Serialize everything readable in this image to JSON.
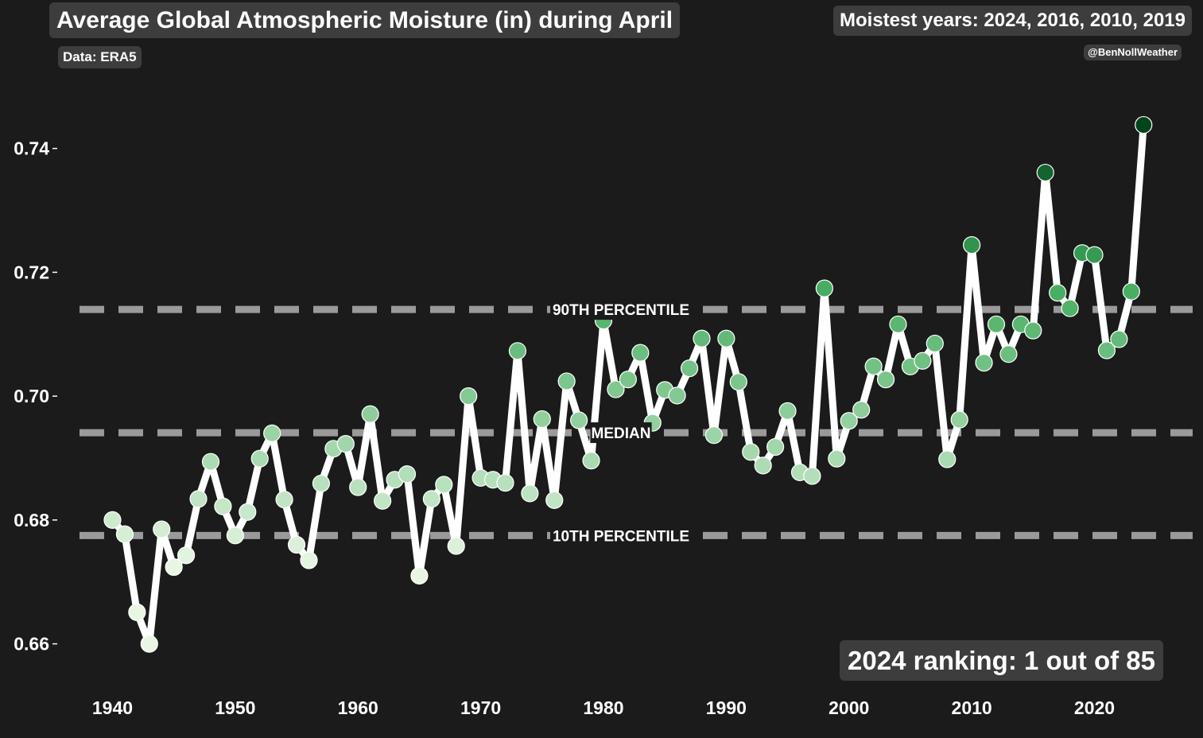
{
  "title": "Average Global Atmospheric Moisture (in) during April",
  "subtitle": "Moistest years: 2024, 2016, 2010, 2019",
  "source": "Data: ERA5",
  "credit": "@BenNollWeather",
  "ranking": "2024 ranking: 1 out of 85",
  "chart_data": {
    "type": "line",
    "title": "Average Global Atmospheric Moisture (in) during April",
    "xlabel": "",
    "ylabel": "",
    "xlim": [
      1935.5,
      2028
    ],
    "ylim": [
      0.6525,
      0.7537
    ],
    "x_ticks": [
      1940,
      1950,
      1960,
      1970,
      1980,
      1990,
      2000,
      2010,
      2020
    ],
    "y_ticks": [
      0.66,
      0.68,
      0.7,
      0.72,
      0.74
    ],
    "y_tick_labels": [
      "0.66",
      "0.68",
      "0.70",
      "0.72",
      "0.74"
    ],
    "grid": false,
    "reference_lines": [
      {
        "label": "90TH PERCENTILE",
        "value": 0.714
      },
      {
        "label": "MEDIAN",
        "value": 0.6941
      },
      {
        "label": "10TH PERCENTILE",
        "value": 0.6775
      }
    ],
    "series": [
      {
        "x": [
          1940,
          1941,
          1942,
          1943,
          1944,
          1945,
          1946,
          1947,
          1948,
          1949,
          1950,
          1951,
          1952,
          1953,
          1954,
          1955,
          1956,
          1957,
          1958,
          1959,
          1960,
          1961,
          1962,
          1963,
          1964,
          1965,
          1966,
          1967,
          1968,
          1969,
          1970,
          1971,
          1972,
          1973,
          1974,
          1975,
          1976,
          1977,
          1978,
          1979,
          1980,
          1981,
          1982,
          1983,
          1984,
          1985,
          1986,
          1987,
          1988,
          1989,
          1990,
          1991,
          1992,
          1993,
          1994,
          1995,
          1996,
          1997,
          1998,
          1999,
          2000,
          2001,
          2002,
          2003,
          2004,
          2005,
          2006,
          2007,
          2008,
          2009,
          2010,
          2011,
          2012,
          2013,
          2014,
          2015,
          2016,
          2017,
          2018,
          2019,
          2020,
          2021,
          2022,
          2023,
          2024
        ],
        "values": [
          0.68,
          0.6777,
          0.6651,
          0.66,
          0.6785,
          0.6724,
          0.6743,
          0.6834,
          0.6894,
          0.6822,
          0.6775,
          0.6813,
          0.6899,
          0.694,
          0.6833,
          0.676,
          0.6735,
          0.6859,
          0.6915,
          0.6923,
          0.6853,
          0.6971,
          0.6831,
          0.6865,
          0.6874,
          0.671,
          0.6834,
          0.6857,
          0.6758,
          0.7,
          0.6868,
          0.6865,
          0.686,
          0.7073,
          0.6843,
          0.6963,
          0.6832,
          0.7024,
          0.6961,
          0.6896,
          0.7122,
          0.7011,
          0.7027,
          0.707,
          0.6957,
          0.701,
          0.7001,
          0.7045,
          0.7093,
          0.6937,
          0.7093,
          0.7023,
          0.691,
          0.6888,
          0.6918,
          0.6976,
          0.6877,
          0.6871,
          0.7174,
          0.6899,
          0.696,
          0.6978,
          0.7048,
          0.7027,
          0.7116,
          0.7048,
          0.7057,
          0.7085,
          0.6898,
          0.6962,
          0.7244,
          0.7054,
          0.7116,
          0.7068,
          0.7116,
          0.7106,
          0.7361,
          0.7167,
          0.7142,
          0.7231,
          0.7228,
          0.7074,
          0.7092,
          0.7169,
          0.7438
        ],
        "marker_colors": {
          "low": "#e8f6e3",
          "mid": "#41ab5d",
          "high": "#00441b"
        },
        "line_color": "#ffffff"
      }
    ]
  }
}
